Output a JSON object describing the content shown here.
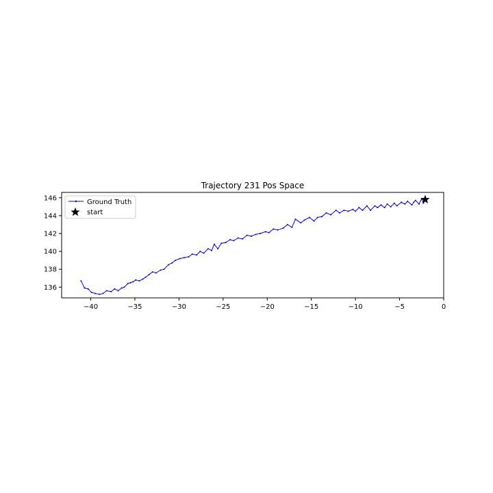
{
  "chart_data": {
    "type": "line",
    "title": "Trajectory 231 Pos Space",
    "xlabel": "",
    "ylabel": "",
    "xlim": [
      -43.3,
      0
    ],
    "ylim": [
      134.8,
      146.6
    ],
    "xticks": [
      -40,
      -35,
      -30,
      -25,
      -20,
      -15,
      -10,
      -5,
      0
    ],
    "yticks": [
      136,
      138,
      140,
      142,
      144,
      146
    ],
    "xtick_labels": [
      "−40",
      "−35",
      "−30",
      "−25",
      "−20",
      "−15",
      "−10",
      "−5",
      "0"
    ],
    "ytick_labels": [
      "136",
      "138",
      "140",
      "142",
      "144",
      "146"
    ],
    "grid": false,
    "legend": {
      "location": "upper-left",
      "entries": [
        "Ground Truth",
        "start"
      ]
    },
    "colors": {
      "ground_truth": "#0000ff",
      "start_marker": "#000000"
    },
    "series": [
      {
        "name": "Ground Truth",
        "x": [
          -2.1,
          -2.3,
          -2.5,
          -2.8,
          -3.2,
          -3.4,
          -3.6,
          -4.1,
          -4.4,
          -4.8,
          -5.3,
          -5.6,
          -6.0,
          -6.4,
          -6.7,
          -7.1,
          -7.5,
          -7.8,
          -8.3,
          -8.7,
          -9.2,
          -9.6,
          -10.0,
          -10.3,
          -10.8,
          -11.3,
          -11.8,
          -12.2,
          -12.8,
          -13.3,
          -13.8,
          -14.3,
          -14.7,
          -15.2,
          -15.8,
          -16.2,
          -16.8,
          -17.2,
          -17.7,
          -18.2,
          -18.8,
          -19.3,
          -19.8,
          -20.2,
          -20.8,
          -21.3,
          -21.8,
          -22.3,
          -22.8,
          -23.3,
          -23.8,
          -24.2,
          -24.7,
          -25.2,
          -25.6,
          -26.0,
          -26.3,
          -26.7,
          -27.2,
          -27.6,
          -28.0,
          -28.5,
          -28.9,
          -29.4,
          -29.9,
          -30.4,
          -30.8,
          -31.2,
          -31.7,
          -32.1,
          -32.6,
          -33.0,
          -33.4,
          -33.8,
          -34.1,
          -34.5,
          -34.9,
          -35.2,
          -35.5,
          -35.8,
          -36.2,
          -36.5,
          -36.9,
          -37.3,
          -37.7,
          -38.2,
          -38.6,
          -39.0,
          -39.5,
          -39.9,
          -40.3,
          -40.7,
          -41.1
        ],
        "y": [
          145.8,
          145.4,
          145.9,
          145.3,
          145.7,
          145.5,
          145.2,
          145.6,
          145.3,
          145.5,
          145.1,
          145.4,
          145.0,
          145.3,
          144.9,
          145.2,
          144.9,
          145.1,
          144.6,
          145.1,
          144.6,
          144.9,
          144.5,
          144.7,
          144.5,
          144.6,
          144.3,
          144.6,
          144.1,
          144.3,
          143.9,
          143.8,
          143.4,
          143.8,
          143.5,
          143.2,
          143.6,
          142.7,
          143.0,
          142.6,
          142.4,
          142.5,
          142.1,
          142.2,
          142.0,
          141.9,
          141.7,
          141.8,
          141.4,
          141.5,
          141.2,
          141.3,
          141.0,
          140.9,
          140.3,
          140.8,
          140.1,
          140.3,
          139.8,
          140.0,
          139.6,
          139.7,
          139.4,
          139.3,
          139.2,
          139.0,
          138.7,
          138.5,
          138.0,
          137.9,
          137.6,
          137.7,
          137.4,
          137.1,
          136.9,
          136.7,
          136.8,
          136.6,
          136.5,
          136.4,
          136.0,
          135.9,
          135.6,
          135.8,
          135.5,
          135.6,
          135.3,
          135.2,
          135.3,
          135.4,
          135.8,
          135.9,
          136.7
        ]
      }
    ],
    "start": {
      "name": "start",
      "x": -2.1,
      "y": 145.8
    }
  }
}
